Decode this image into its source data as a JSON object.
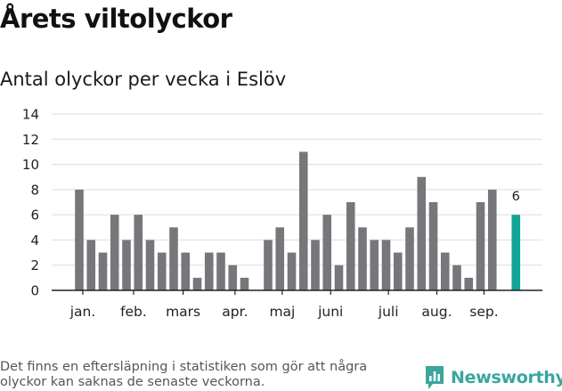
{
  "title": "Årets viltolyckor",
  "subtitle": "Antal olyckor per vecka i Eslöv",
  "footnote": "Det finns en eftersläpning i statistiken som gör att några olyckor kan saknas de senaste veckorna.",
  "brand": {
    "name": "Newsworthy",
    "icon": "newsworthy-logo-icon",
    "color": "#3aa69d"
  },
  "chart_data": {
    "type": "bar",
    "weeks": [
      1,
      2,
      3,
      4,
      5,
      6,
      7,
      8,
      9,
      10,
      11,
      12,
      13,
      14,
      15,
      16,
      17,
      18,
      19,
      20,
      21,
      22,
      23,
      24,
      25,
      26,
      27,
      28,
      29,
      30,
      31,
      32,
      33,
      34,
      35,
      36,
      37,
      38
    ],
    "values": [
      8,
      4,
      3,
      6,
      4,
      6,
      4,
      3,
      5,
      3,
      1,
      3,
      3,
      2,
      1,
      0,
      4,
      5,
      3,
      11,
      4,
      6,
      2,
      7,
      5,
      4,
      4,
      3,
      5,
      9,
      7,
      3,
      2,
      1,
      7,
      8,
      0,
      6
    ],
    "highlight_index": 37,
    "highlight_label": "6",
    "month_labels": [
      {
        "label": "jan.",
        "week": 1.3
      },
      {
        "label": "feb.",
        "week": 5.6
      },
      {
        "label": "mars",
        "week": 9.8
      },
      {
        "label": "apr.",
        "week": 14.2
      },
      {
        "label": "maj",
        "week": 18.2
      },
      {
        "label": "juni",
        "week": 22.3
      },
      {
        "label": "juli",
        "week": 27.2
      },
      {
        "label": "aug.",
        "week": 31.3
      },
      {
        "label": "sep.",
        "week": 35.3
      }
    ],
    "ylim": [
      0,
      14
    ],
    "yticks": [
      0,
      2,
      4,
      6,
      8,
      10,
      12,
      14
    ],
    "grid": true,
    "colors": {
      "bar": "#77767b",
      "highlight": "#11a596",
      "grid": "#dddddd",
      "axis": "#222222"
    }
  }
}
